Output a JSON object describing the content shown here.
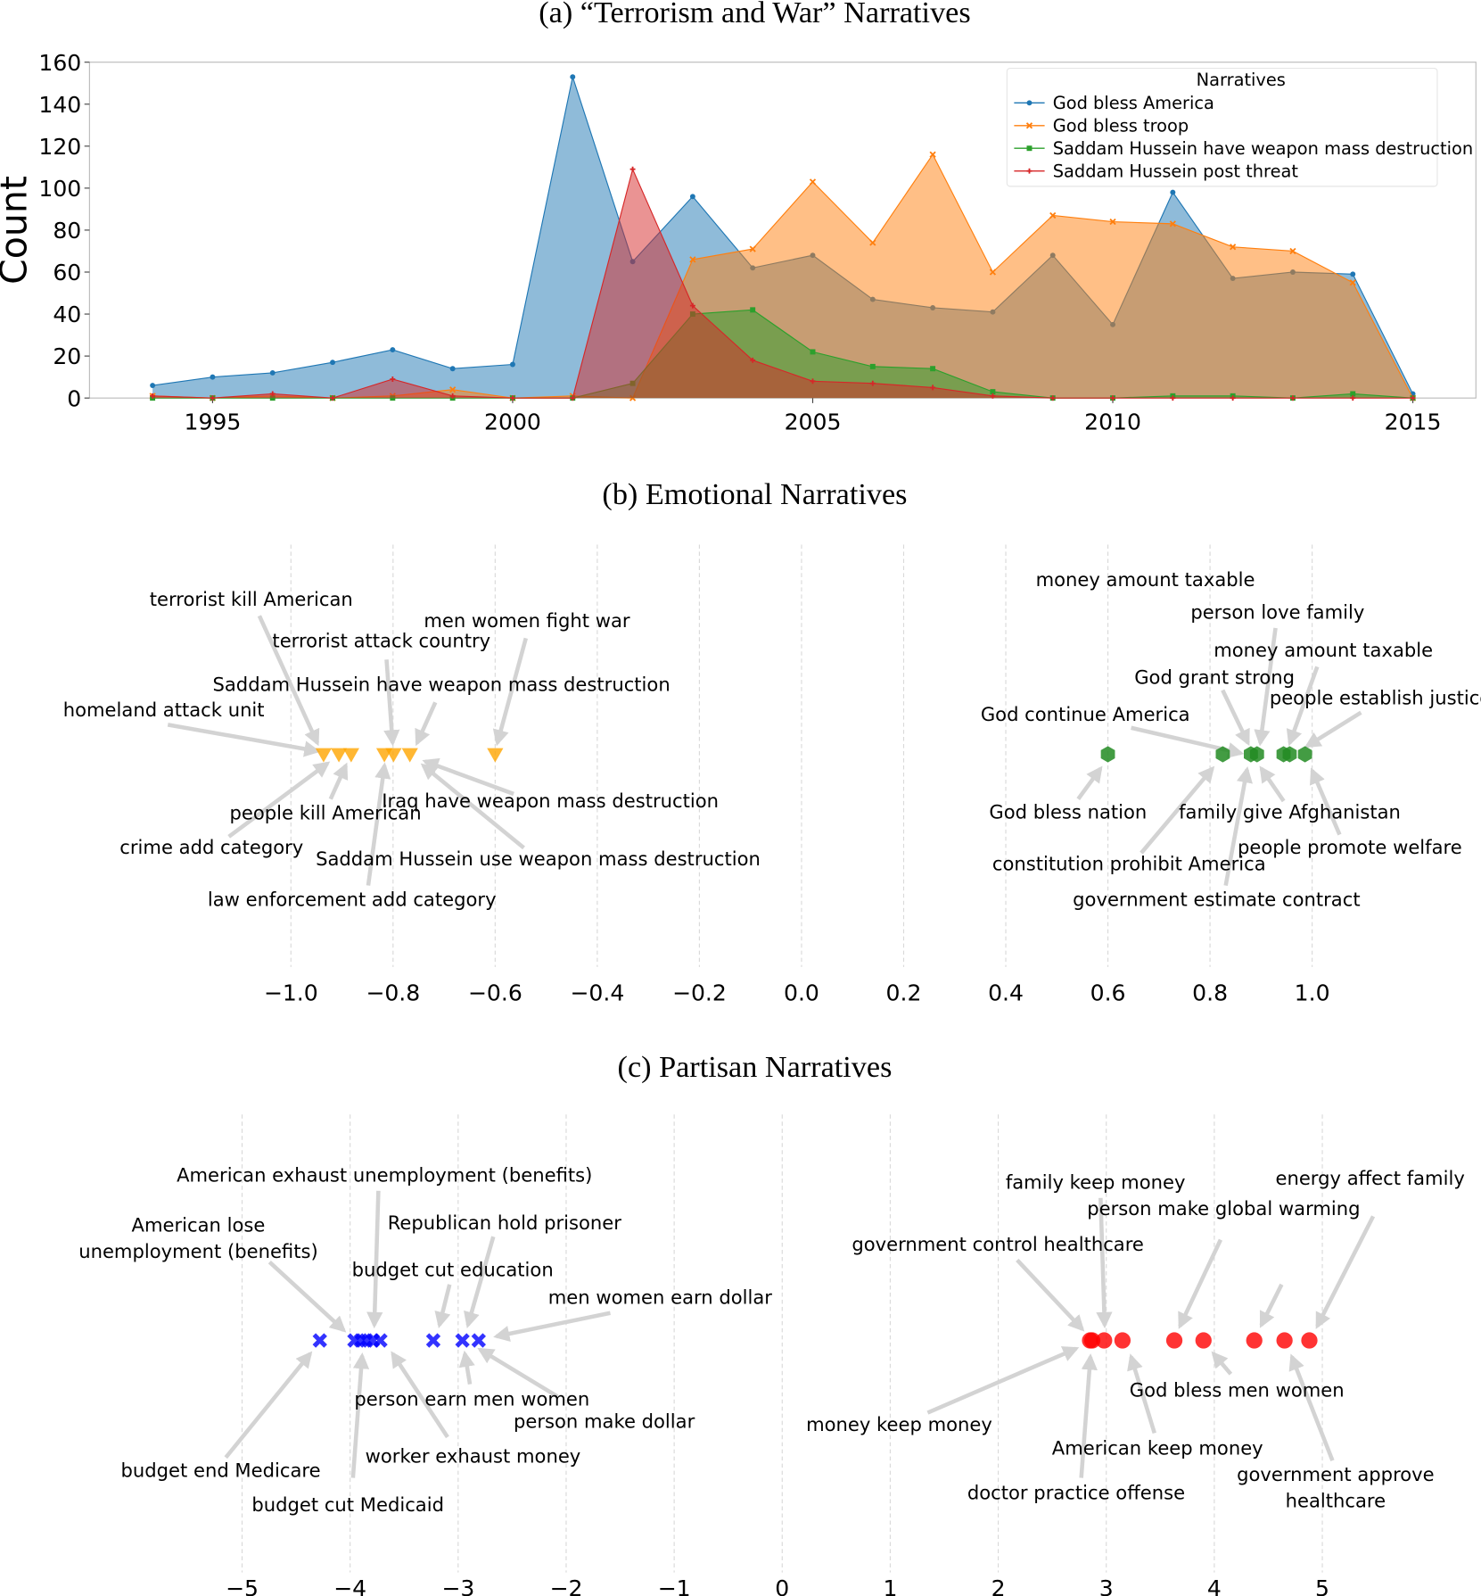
{
  "chart_data": [
    {
      "type": "area",
      "title": "(a) “Terrorism and War” Narratives",
      "xlabel": "",
      "ylabel": "Count",
      "ylim": [
        0,
        160
      ],
      "xlim": [
        1992,
        2016
      ],
      "yticks": [
        "0",
        "20",
        "40",
        "60",
        "80",
        "100",
        "120",
        "140",
        "160"
      ],
      "xticks": [
        "1995",
        "2000",
        "2005",
        "2010",
        "2015"
      ],
      "grid": false,
      "legend": {
        "title": "Narratives",
        "placement": "top-right"
      },
      "x": [
        1994,
        1995,
        1996,
        1997,
        1998,
        1999,
        2000,
        2001,
        2002,
        2003,
        2004,
        2005,
        2006,
        2007,
        2008,
        2009,
        2010,
        2011,
        2012,
        2013,
        2014,
        2015
      ],
      "series": [
        {
          "name": "God bless America",
          "color": "#1f77b4",
          "marker": "circle",
          "values": [
            6,
            10,
            12,
            17,
            23,
            14,
            16,
            153,
            65,
            96,
            62,
            68,
            47,
            43,
            41,
            68,
            35,
            98,
            57,
            60,
            59,
            2
          ]
        },
        {
          "name": "God bless troop",
          "color": "#ff7f0e",
          "marker": "x",
          "values": [
            1,
            0,
            1,
            0,
            1,
            4,
            0,
            1,
            0,
            66,
            71,
            103,
            74,
            116,
            60,
            87,
            84,
            83,
            72,
            70,
            55,
            0
          ]
        },
        {
          "name": "Saddam Hussein have weapon mass destruction",
          "color": "#2ca02c",
          "marker": "square",
          "values": [
            0,
            0,
            0,
            0,
            0,
            0,
            0,
            0,
            7,
            40,
            42,
            22,
            15,
            14,
            3,
            0,
            0,
            1,
            1,
            0,
            2,
            0
          ]
        },
        {
          "name": "Saddam Hussein post threat",
          "color": "#d62728",
          "marker": "plus",
          "values": [
            1,
            0,
            2,
            0,
            9,
            1,
            0,
            0,
            109,
            44,
            18,
            8,
            7,
            5,
            1,
            0,
            0,
            0,
            0,
            0,
            0,
            0
          ]
        }
      ]
    },
    {
      "type": "scatter",
      "title": "(b) Emotional Narratives",
      "xlim": [
        -1.0,
        1.0
      ],
      "xticks": [
        "−1.0",
        "−0.8",
        "−0.6",
        "−0.4",
        "−0.2",
        "0.0",
        "0.2",
        "0.4",
        "0.6",
        "0.8",
        "1.0"
      ],
      "grid": "vertical dashed",
      "series": [
        {
          "color": "#ffa500",
          "marker": "triangle-down",
          "x": [
            -0.936,
            -0.906,
            -0.882,
            -0.817,
            -0.799,
            -0.767,
            -0.6
          ]
        },
        {
          "color": "#228b22",
          "marker": "hexagon",
          "x": [
            0.6,
            0.825,
            0.88,
            0.892,
            0.944,
            0.956,
            0.986
          ]
        }
      ],
      "annotations": [
        {
          "text": "terrorist kill American"
        },
        {
          "text": "terrorist attack country"
        },
        {
          "text": "men women fight war"
        },
        {
          "text": "Saddam Hussein have weapon mass destruction"
        },
        {
          "text": "homeland attack unit"
        },
        {
          "text": "people kill American"
        },
        {
          "text": "crime add category"
        },
        {
          "text": "law enforcement add category"
        },
        {
          "text": "Iraq have weapon mass  destruction"
        },
        {
          "text": "Saddam Hussein use weapon mass destruction"
        },
        {
          "text": "money amount taxable"
        },
        {
          "text": "person love family"
        },
        {
          "text": "money amount taxable"
        },
        {
          "text": "God grant strong"
        },
        {
          "text": "people establish justice"
        },
        {
          "text": "God continue America"
        },
        {
          "text": "God bless nation"
        },
        {
          "text": "constitution prohibit America"
        },
        {
          "text": "government estimate contract"
        },
        {
          "text": "family give Afghanistan"
        },
        {
          "text": "people promote welfare"
        }
      ]
    },
    {
      "type": "scatter",
      "title": "(c) Partisan Narratives",
      "xlim": [
        -5,
        5
      ],
      "xticks": [
        "−5",
        "−4",
        "−3",
        "−2",
        "−1",
        "0",
        "1",
        "2",
        "3",
        "4",
        "5"
      ],
      "grid": "vertical dashed",
      "series": [
        {
          "color": "#0000ff",
          "marker": "x",
          "x": [
            -4.28,
            -3.96,
            -3.9,
            -3.85,
            -3.79,
            -3.72,
            -3.23,
            -2.96,
            -2.81
          ]
        },
        {
          "color": "#ff0000",
          "marker": "circle",
          "x": [
            2.85,
            2.87,
            2.98,
            3.15,
            3.63,
            3.9,
            4.37,
            4.65,
            4.88
          ]
        }
      ],
      "annotations": [
        {
          "text": "American exhaust unemployment (benefits)"
        },
        {
          "text": "American lose"
        },
        {
          "text": "unemployment (benefits)"
        },
        {
          "text": "Republican hold prisoner"
        },
        {
          "text": "budget cut education"
        },
        {
          "text": "men women earn dollar"
        },
        {
          "text": "person earn men women"
        },
        {
          "text": "person make dollar"
        },
        {
          "text": "worker exhaust money"
        },
        {
          "text": "budget end Medicare"
        },
        {
          "text": "budget cut Medicaid"
        },
        {
          "text": "family keep money"
        },
        {
          "text": "energy affect family"
        },
        {
          "text": "person make global warming"
        },
        {
          "text": "government control healthcare"
        },
        {
          "text": "money keep money"
        },
        {
          "text": "God bless men women"
        },
        {
          "text": "American keep money"
        },
        {
          "text": "doctor practice offense"
        },
        {
          "text": "government approve"
        },
        {
          "text": "healthcare"
        }
      ]
    }
  ]
}
